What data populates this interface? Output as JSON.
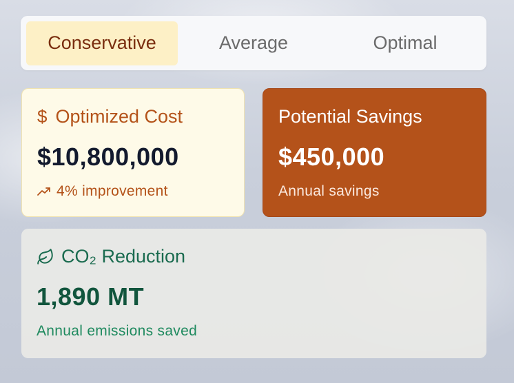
{
  "tabs": [
    {
      "label": "Conservative",
      "active": true
    },
    {
      "label": "Average",
      "active": false
    },
    {
      "label": "Optimal",
      "active": false
    }
  ],
  "cost_card": {
    "title": "Optimized Cost",
    "icon": "dollar-icon",
    "value": "$10,800,000",
    "subtitle": "4% improvement",
    "subtitle_icon": "trending-up-icon"
  },
  "savings_card": {
    "title": "Potential Savings",
    "value": "$450,000",
    "subtitle": "Annual savings"
  },
  "co2_card": {
    "title": "CO₂ Reduction",
    "icon": "leaf-icon",
    "value": "1,890 MT",
    "subtitle": "Annual emissions saved"
  },
  "colors": {
    "active_tab_bg": "#fdf0c6",
    "active_tab_text": "#7a2e0f",
    "accent_orange": "#b4521a",
    "green_text": "#1a6b4f",
    "cost_card_bg": "#fefae8"
  }
}
